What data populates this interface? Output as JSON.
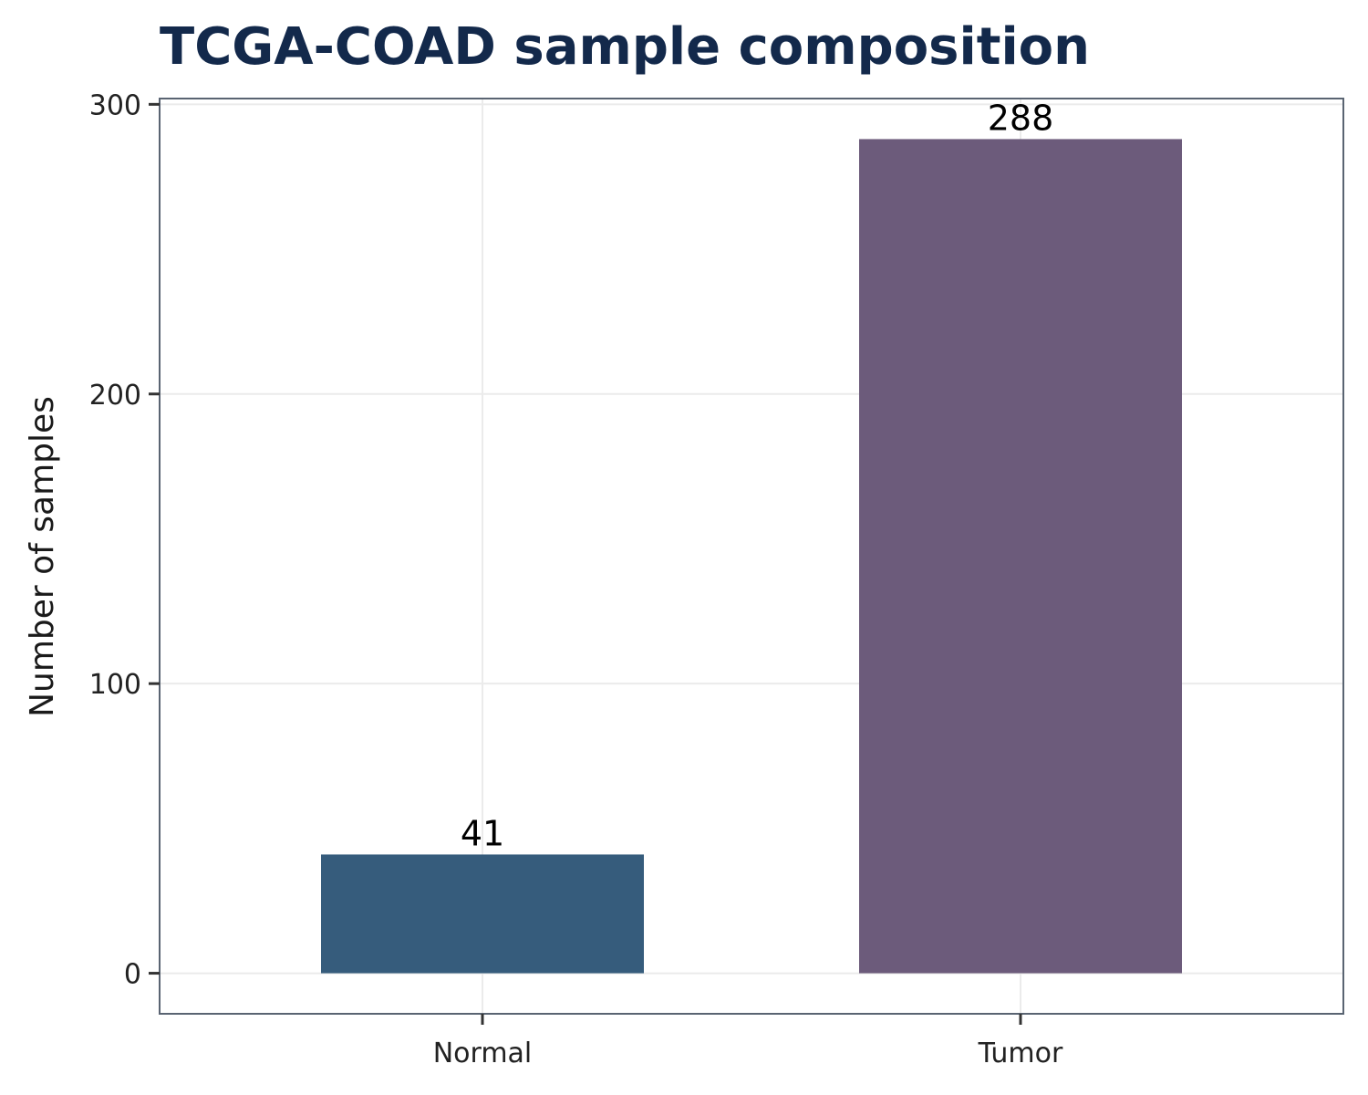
{
  "chart_data": {
    "type": "bar",
    "title": "TCGA-COAD sample composition",
    "xlabel": "",
    "ylabel": "Number of samples",
    "categories": [
      "Normal",
      "Tumor"
    ],
    "values": [
      41,
      288
    ],
    "data_labels": [
      "41",
      "288"
    ],
    "bar_colors": [
      "#365c7c",
      "#6c5b7b"
    ],
    "ylim": [
      -14,
      302
    ],
    "yticks": [
      0,
      100,
      200,
      300
    ],
    "ytick_labels": [
      "0",
      "100",
      "200",
      "300"
    ],
    "grid": true,
    "legend": "none"
  },
  "colors": {
    "title": "#13294b",
    "panel_border": "#5a6472",
    "grid": "#ebebeb",
    "tick": "#333333"
  }
}
